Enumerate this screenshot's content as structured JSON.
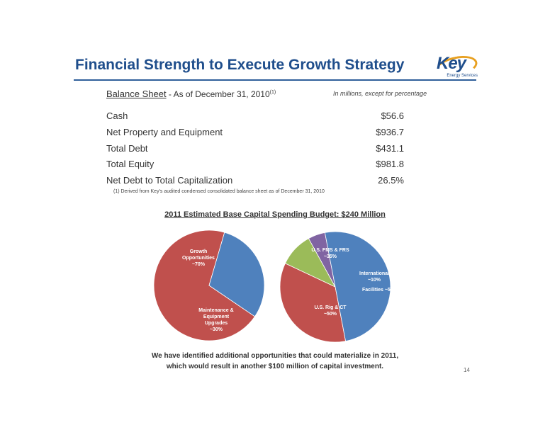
{
  "title": "Financial Strength to Execute Growth Strategy",
  "logo": {
    "main": "Key",
    "sub": "Energy Services"
  },
  "balance_sheet": {
    "heading": "Balance Sheet",
    "subheading": " - As of December 31, 2010",
    "superscript": "(1)",
    "units_note": "In millions, except for percentage",
    "rows": [
      {
        "label": "Cash",
        "value": "$56.6"
      },
      {
        "label": "Net Property and Equipment",
        "value": "$936.7"
      },
      {
        "label": "Total Debt",
        "value": "$431.1"
      },
      {
        "label": "Total Equity",
        "value": "$981.8"
      },
      {
        "label": "Net Debt to Total Capitalization",
        "value": "26.5%"
      }
    ],
    "footnote": "(1) Derived from Key's audited condensed consolidated balance sheet as of December 31, 2010"
  },
  "budget_title": "2011 Estimated  Base Capital  Spending Budget: $240 Million",
  "chart_data": [
    {
      "type": "pie",
      "title": "",
      "slices": [
        {
          "label": "Growth Opportunities ~70%",
          "value": 70,
          "color": "#c0504d"
        },
        {
          "label": "Maintenance & Equipment Upgrades ~30%",
          "value": 30,
          "color": "#4f81bd"
        }
      ]
    },
    {
      "type": "pie",
      "title": "",
      "slices": [
        {
          "label": "U.S. FMS & FRS ~35%",
          "value": 35,
          "color": "#c0504d"
        },
        {
          "label": "International ~10%",
          "value": 10,
          "color": "#9bbb59"
        },
        {
          "label": "Facilities ~5%",
          "value": 5,
          "color": "#8064a2"
        },
        {
          "label": "U.S. Rig & CT ~50%",
          "value": 50,
          "color": "#4f81bd"
        }
      ]
    }
  ],
  "pie_labels": {
    "growth": [
      "Growth",
      "Opportunities",
      "~70%"
    ],
    "maintenance": [
      "Maintenance &",
      "Equipment",
      "Upgrades",
      "~30%"
    ],
    "fms": [
      "U.S. FMS & FRS",
      "~35%"
    ],
    "international": [
      "International",
      "~10%"
    ],
    "facilities": [
      "Facilities ~5%"
    ],
    "rig": [
      "U.S. Rig & CT",
      "~50%"
    ]
  },
  "bottom_text": [
    "We have identified additional opportunities that could materialize in 2011,",
    "which would result in another $100 million of capital investment."
  ],
  "page_number": "14"
}
